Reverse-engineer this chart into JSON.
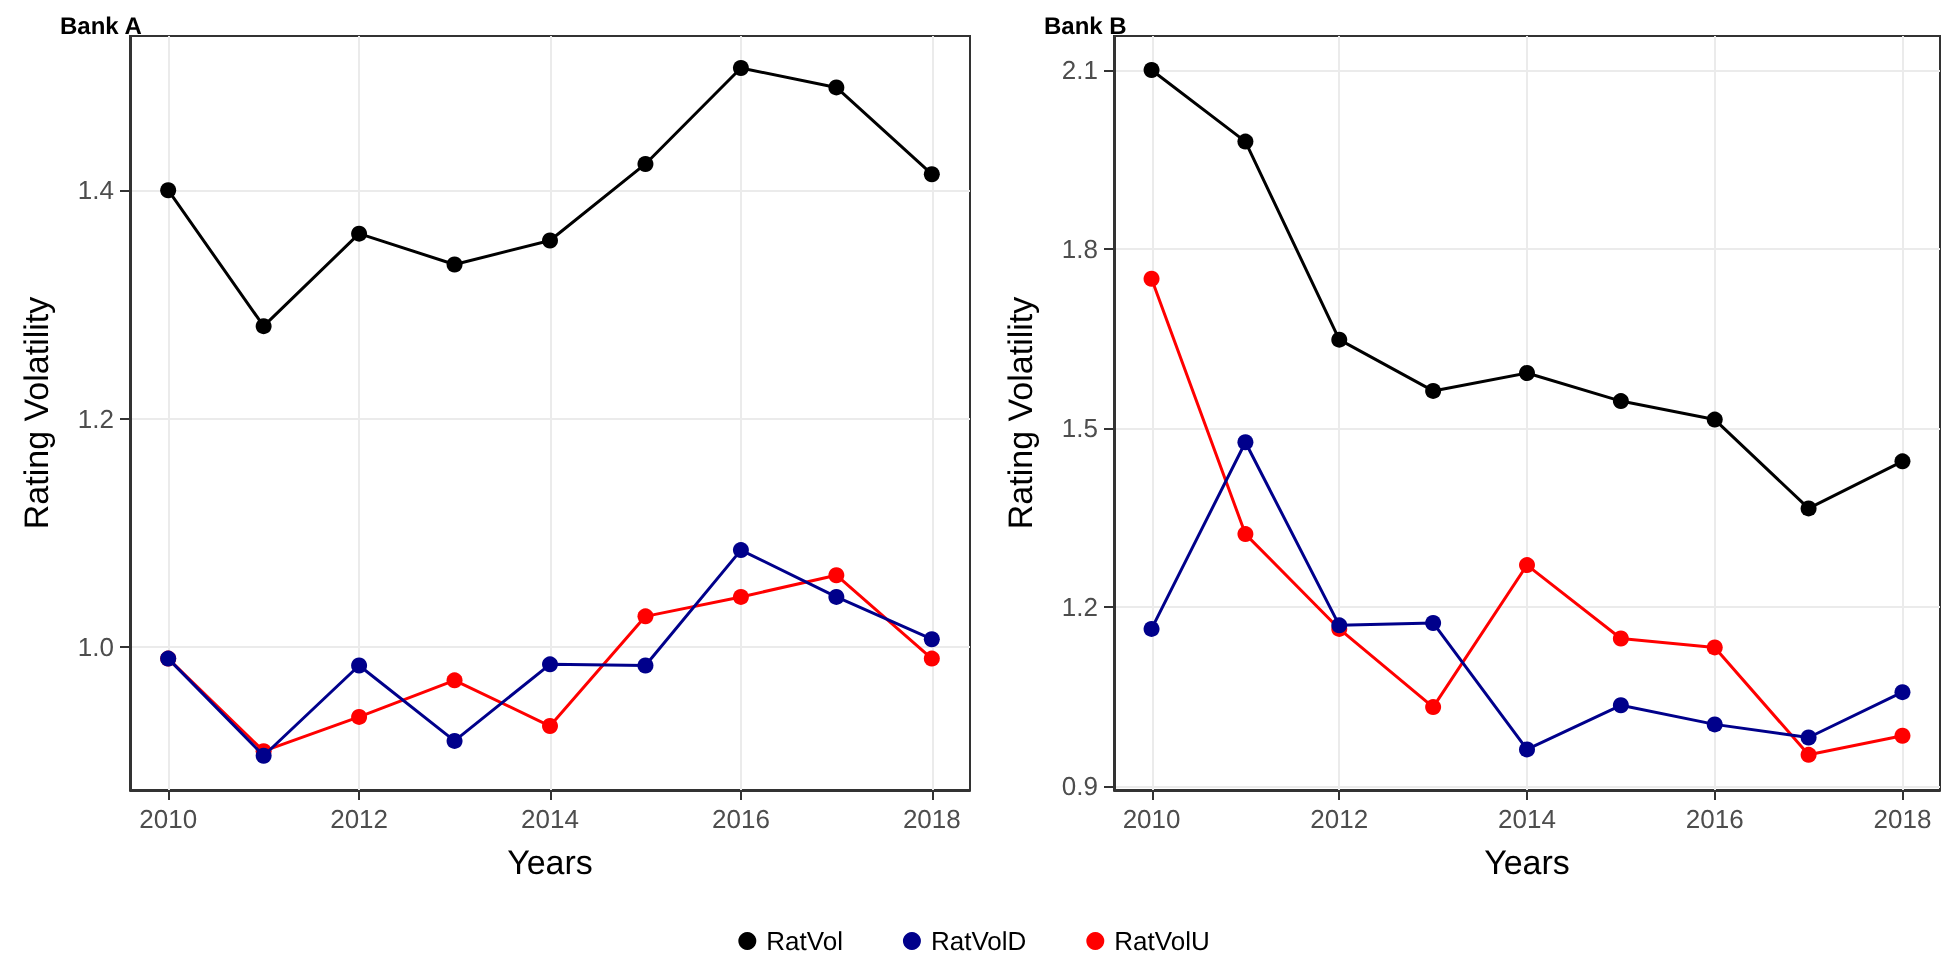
{
  "chart_data": [
    {
      "type": "line",
      "title": "Bank A",
      "xlabel": "Years",
      "ylabel": "Rating Volatility",
      "x": [
        2010,
        2011,
        2012,
        2013,
        2014,
        2015,
        2016,
        2017,
        2018
      ],
      "series": [
        {
          "name": "RatVol",
          "color": "#000000",
          "values": [
            1.4,
            1.281,
            1.362,
            1.335,
            1.356,
            1.423,
            1.507,
            1.49,
            1.414
          ]
        },
        {
          "name": "RatVolD",
          "color": "#00008b",
          "values": [
            0.99,
            0.905,
            0.984,
            0.918,
            0.985,
            0.984,
            1.085,
            1.044,
            1.007
          ]
        },
        {
          "name": "RatVolU",
          "color": "#ff0000",
          "values": [
            0.99,
            0.909,
            0.939,
            0.971,
            0.931,
            1.027,
            1.044,
            1.063,
            0.99
          ]
        }
      ],
      "xlim": [
        2009.6,
        2018.4
      ],
      "xticks": [
        2010,
        2012,
        2014,
        2016,
        2018
      ],
      "ylim": [
        0.875,
        1.535
      ],
      "yticks": [
        {
          "value": 1.0,
          "label": "1.0"
        },
        1.2,
        1.4
      ],
      "grid": true,
      "legend": "bottom",
      "marker": "circle",
      "line_style": "solid"
    },
    {
      "type": "line",
      "title": "Bank B",
      "xlabel": "Years",
      "ylabel": "Rating Volatility",
      "x": [
        2010,
        2011,
        2012,
        2013,
        2014,
        2015,
        2016,
        2017,
        2018
      ],
      "series": [
        {
          "name": "RatVol",
          "color": "#000000",
          "values": [
            2.1,
            1.98,
            1.648,
            1.562,
            1.592,
            1.545,
            1.514,
            1.365,
            1.444
          ]
        },
        {
          "name": "RatVolD",
          "color": "#00008b",
          "values": [
            1.163,
            1.476,
            1.169,
            1.173,
            0.961,
            1.035,
            1.003,
            0.981,
            1.057
          ]
        },
        {
          "name": "RatVolU",
          "color": "#ff0000",
          "values": [
            1.75,
            1.322,
            1.163,
            1.032,
            1.27,
            1.147,
            1.132,
            0.952,
            0.984
          ]
        }
      ],
      "xlim": [
        2009.6,
        2018.4
      ],
      "xticks": [
        2010,
        2012,
        2014,
        2016,
        2018
      ],
      "ylim": [
        0.893,
        2.157
      ],
      "yticks": [
        0.9,
        1.2,
        1.5,
        1.8,
        2.1
      ],
      "grid": true,
      "legend": "bottom",
      "marker": "circle",
      "line_style": "solid"
    }
  ]
}
